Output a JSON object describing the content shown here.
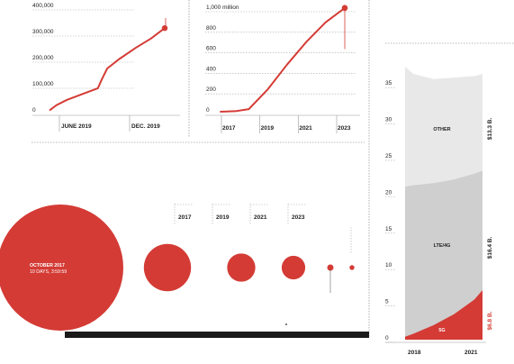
{
  "colors": {
    "accent": "#d43b35",
    "other": "#e8e8e8",
    "lte": "#cfcfcf",
    "text": "#222222",
    "bar": "#1a1a1a"
  },
  "chart_data": [
    {
      "type": "line",
      "y_ticks": [
        "0",
        "100,000",
        "200,000",
        "300,000",
        "400,000"
      ],
      "x_ticks": [
        "JUNE 2019",
        "DEC. 2019"
      ],
      "ylim": [
        0,
        400000
      ],
      "points": [
        [
          0,
          5000
        ],
        [
          0.06,
          25000
        ],
        [
          0.15,
          45000
        ],
        [
          0.3,
          70000
        ],
        [
          0.42,
          90000
        ],
        [
          0.45,
          120000
        ],
        [
          0.5,
          165000
        ],
        [
          0.6,
          200000
        ],
        [
          0.75,
          245000
        ],
        [
          0.88,
          280000
        ],
        [
          1.0,
          320000
        ]
      ],
      "end_marker": {
        "x": 1.0,
        "y": 320000
      }
    },
    {
      "type": "line",
      "y_ticks": [
        "0",
        "200",
        "400",
        "600",
        "800",
        "1,000 million"
      ],
      "x_ticks": [
        "2017",
        "2019",
        "2021",
        "2023"
      ],
      "ylim": [
        0,
        1000
      ],
      "points": [
        [
          2016.5,
          0
        ],
        [
          2017.3,
          5
        ],
        [
          2018.0,
          25
        ],
        [
          2019.0,
          220
        ],
        [
          2020.0,
          460
        ],
        [
          2021.0,
          680
        ],
        [
          2022.0,
          870
        ],
        [
          2023.0,
          1010
        ]
      ],
      "end_marker": {
        "x": 2023.0,
        "y": 1010
      },
      "end_marker_drop": 610
    },
    {
      "type": "bubble",
      "labels": [
        "OCTOBER 2017",
        "10 DAYS, 3:59:59"
      ],
      "year_labels": [
        "2017",
        "2019",
        "2021",
        "2023"
      ],
      "values": [
        1,
        0.14,
        0.05,
        0.035,
        0.0025,
        0.0015
      ]
    },
    {
      "type": "area",
      "x": [
        2017.6,
        2018,
        2019,
        2020,
        2021,
        2021.4
      ],
      "x_ticks": [
        "2018",
        "2021"
      ],
      "y_ticks": [
        "0",
        "5",
        "10",
        "15",
        "20",
        "25",
        "30",
        "35"
      ],
      "ylim": [
        0,
        37
      ],
      "series": [
        {
          "name": "5G",
          "values": [
            0.4,
            0.8,
            2.0,
            3.5,
            5.5,
            6.8
          ],
          "color": "#d43b35",
          "value_label": "$6.8 B."
        },
        {
          "name": "LTE/4G",
          "values": [
            21,
            21.2,
            21.5,
            22,
            22.8,
            23.2
          ],
          "color": "#cfcfcf",
          "value_label": "$16.4 B."
        },
        {
          "name": "OTHER",
          "values": [
            37.5,
            36.5,
            35.8,
            36,
            36.2,
            36.5
          ],
          "color": "#e8e8e8",
          "value_label": "$13.3 B."
        }
      ]
    }
  ]
}
